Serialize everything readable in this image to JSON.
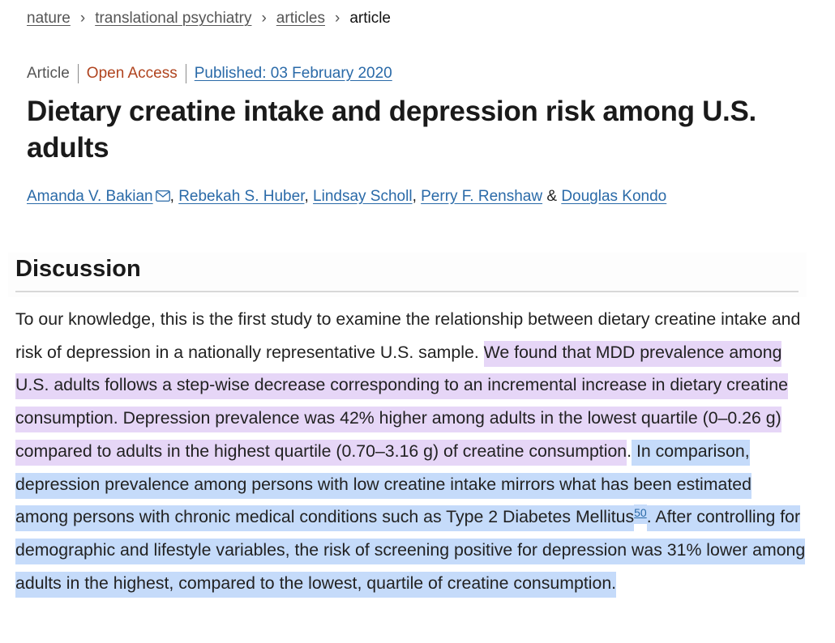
{
  "breadcrumb": {
    "items": [
      "nature",
      "translational psychiatry",
      "articles"
    ],
    "current": "article",
    "separator": "›"
  },
  "meta": {
    "type": "Article",
    "access": "Open Access",
    "published": "Published: 03 February 2020"
  },
  "title": "Dietary creatine intake and depression risk among U.S. adults",
  "authors": {
    "list": [
      "Amanda V. Bakian",
      "Rebekah S. Huber",
      "Lindsay Scholl",
      "Perry F. Renshaw",
      "Douglas Kondo"
    ],
    "comma": ", ",
    "and": " & ",
    "contact_icon": "envelope-icon"
  },
  "section": {
    "heading": "Discussion",
    "paragraph": {
      "plain_1": "To our knowledge, this is the first study to examine the relationship between dietary creatine intake and risk of depression in a nationally representative U.S. sample. ",
      "highlight_purple": "We found that MDD prevalence among U.S. adults follows a step-wise decrease corresponding to an incremental increase in dietary creatine consumption. Depression prevalence was 42% higher among adults in the lowest quartile (0–0.26 g) compared to adults in the highest quartile (0.70–3.16 g) of creatine consumption",
      "plain_2": ".",
      "highlight_blue_1": " In comparison, depression prevalence among persons with low creatine intake mirrors what has been estimated among persons with chronic medical conditions such as Type 2 Diabetes Mellitus",
      "ref": "50",
      "highlight_blue_2": ". After controlling for demographic and lifestyle variables, the risk of screening positive for depression was 31% lower among adults in the highest, compared to the lowest, quartile of creatine consumption."
    }
  },
  "colors": {
    "link": "#2a6aa8",
    "open_access": "#b0441f",
    "highlight_purple": "#e6d6f7",
    "highlight_blue": "#c5dbfa"
  }
}
